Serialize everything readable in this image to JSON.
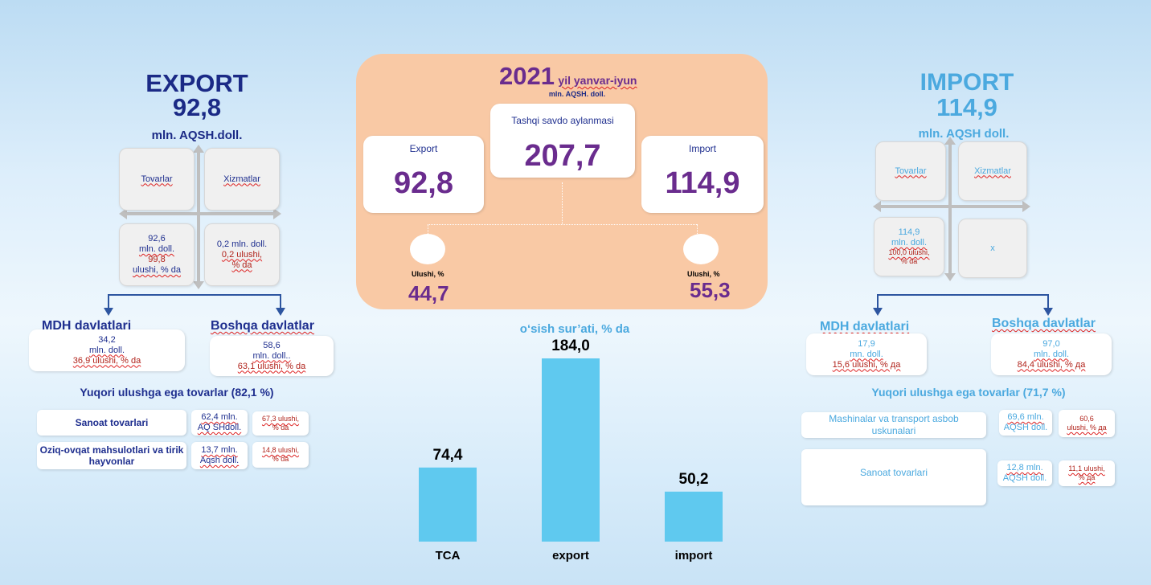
{
  "export": {
    "title": "EXPORT",
    "value": "92,8",
    "unit": "mln. AQSH.doll.",
    "goods_label": "Tovarlar",
    "services_label": "Xizmatlar",
    "goods_value": "92,6",
    "goods_unit": "mln. doll.",
    "goods_share": "99,8",
    "goods_share_label": "ulushi, % da",
    "services_value": "0,2 mln. doll.",
    "services_share": "0,2 ulushi,",
    "services_share_unit": "% da",
    "cis_title": "MDH davlatlari",
    "cis_value": "34,2",
    "cis_unit": "mln. doll.",
    "cis_share": "36,9 ulushi, % da",
    "other_title": "Boshqa davlatlar",
    "other_value": "58,6",
    "other_unit": "mln. doll..",
    "other_share": "63,1 ulushi, % da",
    "top_title": "Yuqori ulushga ega tovarlar (82,1 %)",
    "top_items": [
      {
        "name": "Sanoat tovarlari",
        "value_1": "62,4 mln.",
        "value_2": "AQ SHdoll.",
        "share_1": "67,3 ulushi,",
        "share_2": "% da"
      },
      {
        "name": "Oziq-ovqat mahsulotlari va tirik hayvonlar",
        "value_1": "13,7 mln.",
        "value_2": "Aqsh doll.",
        "share_1": "14,8 ulushi,",
        "share_2": "% da"
      }
    ]
  },
  "import": {
    "title": "IMPORT",
    "value": "114,9",
    "unit": "mln. AQSH doll.",
    "goods_label": "Tovarlar",
    "services_label": "Xizmatlar",
    "goods_value": "114,9",
    "goods_unit": "mln. doll.",
    "goods_share": "100,0 ulushi,",
    "goods_share_unit": "% da",
    "services_value": "x",
    "cis_title": "MDH davlatlari",
    "cis_value": "17,9",
    "cis_unit": "mn. doll.",
    "cis_share": "15,6 ulushi, % да",
    "other_title": "Boshqa davlatlar",
    "other_value": "97,0",
    "other_unit": "mln. doll.",
    "other_share": "84,4 ulushi, % да",
    "top_title": "Yuqori ulushga ega tovarlar (71,7 %)",
    "top_items": [
      {
        "name": "Mashinalar va transport asbob uskunalari",
        "value_1": "69,6 mln.",
        "value_2": "AQSH doll.",
        "share_1": "60,6",
        "share_2": "ulushi, % да"
      },
      {
        "name": "Sanoat tovarlari",
        "value_1": "12,8 mln.",
        "value_2": "AQSH doll.",
        "share_1": "11,1 ulushi,",
        "share_2": "% да"
      }
    ]
  },
  "center": {
    "year": "2021",
    "period": "yil yanvar-iyun",
    "unit": "mln. AQSH. doll.",
    "turnover_label": "Tashqi savdo aylanmasi",
    "turnover_value": "207,7",
    "export_label": "Export",
    "export_value": "92,8",
    "import_label": "Import",
    "import_value": "114,9",
    "share_label_left": "Ulushi, %",
    "share_value_left": "44,7",
    "share_label_right": "Ulushi, %",
    "share_value_right": "55,3"
  },
  "colors": {
    "navy": "#1f2f8f",
    "light_blue": "#4ba9df",
    "peach": "#f9c9a5",
    "purple": "#6a2c8e",
    "bar": "#5fc9ef",
    "red": "#b0221a"
  },
  "chart_data": {
    "type": "bar",
    "title": "o‘sish sur’ati, % da",
    "categories": [
      "TCA",
      "export",
      "import"
    ],
    "values": [
      74.4,
      184.0,
      50.2
    ],
    "value_labels": [
      "74,4",
      "184,0",
      "50,2"
    ],
    "ylim": [
      0,
      184.0
    ],
    "grid": false
  }
}
